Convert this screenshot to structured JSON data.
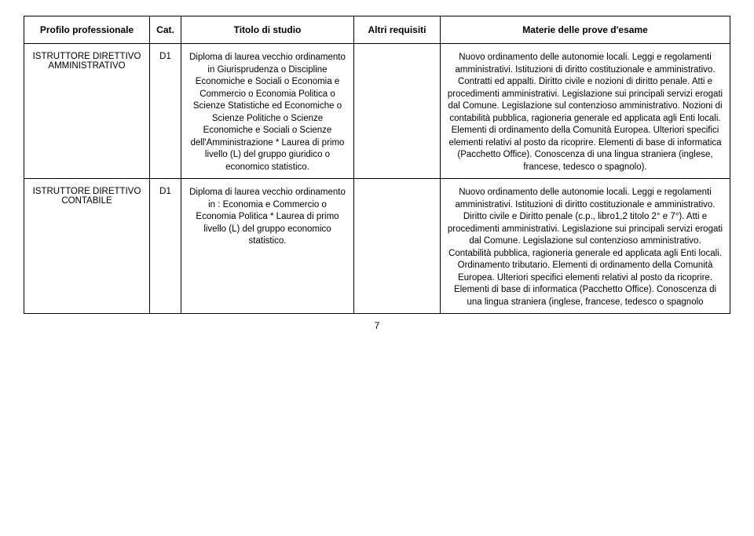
{
  "headers": {
    "profile": "Profilo professionale",
    "cat": "Cat.",
    "titolo": "Titolo di studio",
    "altri": "Altri requisiti",
    "materie": "Materie delle prove d'esame"
  },
  "rows": [
    {
      "profile": "ISTRUTTORE DIRETTIVO AMMINISTRATIVO",
      "cat": "D1",
      "titolo": "Diploma di laurea vecchio ordinamento in Giurisprudenza o Discipline Economiche e Sociali o Economia e Commercio o Economia Politica o Scienze Statistiche ed Economiche o Scienze Politiche o Scienze Economiche e Sociali o Scienze dell'Amministrazione * Laurea di primo livello (L) del gruppo giuridico o economico statistico.",
      "altri": "",
      "materie": "Nuovo ordinamento delle autonomie locali. Leggi e regolamenti amministrativi. Istituzioni di diritto costituzionale e amministrativo. Contratti ed appalti. Diritto civile e nozioni di diritto penale. Atti e procedimenti amministrativi. Legislazione sui principali servizi erogati dal Comune. Legislazione sul contenzioso amministrativo. Nozioni di contabilità pubblica, ragioneria generale ed applicata agli Enti locali. Elementi di ordinamento della Comunità Europea. Ulteriori specifici elementi relativi al posto da ricoprire. Elementi di base di informatica (Pacchetto Office). Conoscenza di una lingua straniera (inglese, francese, tedesco o spagnolo)."
    },
    {
      "profile": "ISTRUTTORE DIRETTIVO CONTABILE",
      "cat": "D1",
      "titolo": "Diploma di laurea vecchio ordinamento in : Economia e Commercio o Economia Politica * Laurea di primo livello (L) del gruppo economico statistico.",
      "altri": "",
      "materie": "Nuovo ordinamento delle autonomie locali. Leggi e regolamenti amministrativi. Istituzioni di diritto costituzionale e amministrativo. Diritto civile e Diritto penale (c.p., libro1,2 titolo 2° e 7°). Atti e procedimenti amministrativi. Legislazione sui principali servizi erogati dal Comune. Legislazione sul contenzioso amministrativo. Contabilità pubblica, ragioneria generale ed applicata agli Enti locali. Ordinamento tributario. Elementi di ordinamento della Comunità Europea. Ulteriori specifici elementi relativi al posto da ricoprire. Elementi di base di informatica (Pacchetto Office). Conoscenza di una lingua straniera (inglese, francese, tedesco o spagnolo"
    }
  ],
  "pageNumber": "7"
}
